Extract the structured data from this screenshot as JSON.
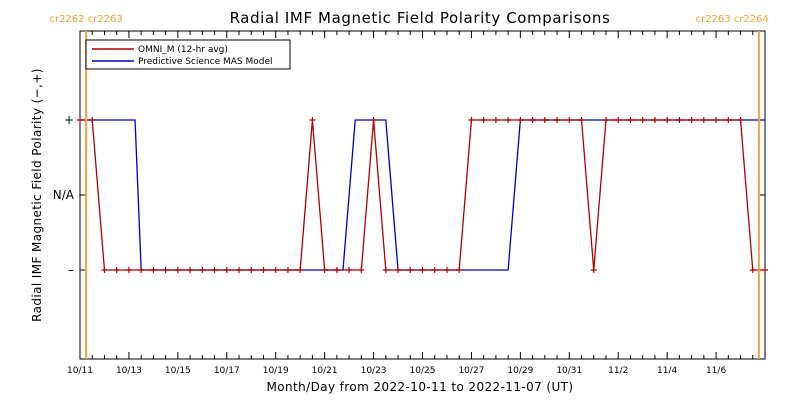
{
  "chart_data": {
    "type": "line",
    "title": "Radial IMF Magnetic Field Polarity Comparisons",
    "xlabel": "Month/Day from 2022-10-11 to 2022-11-07 (UT)",
    "ylabel": "Radial IMF Magnetic Field Polarity (−,+)",
    "x_tick_labels": [
      "10/11",
      "10/13",
      "10/15",
      "10/17",
      "10/19",
      "10/21",
      "10/23",
      "10/25",
      "10/27",
      "10/29",
      "10/31",
      "11/2",
      "11/4",
      "11/6"
    ],
    "y_tick_labels": [
      "+",
      "N/A",
      "–"
    ],
    "y_levels": [
      "+",
      "N/A",
      "–"
    ],
    "carrington_markers": [
      {
        "date": "2022-10-11T06:00",
        "labels": [
          "cr2262",
          "cr2263"
        ],
        "color": "#f7a03c"
      },
      {
        "date": "2022-11-07T18:00",
        "labels": [
          "cr2263",
          "cr2264"
        ],
        "color": "#f7a03c"
      }
    ],
    "legend": {
      "placement": "top-left"
    },
    "series": [
      {
        "name": "OMNI_M (12-hr avg)",
        "color": "#b00000",
        "markers": true,
        "points": [
          [
            "2022-10-11T00:00",
            "+"
          ],
          [
            "2022-10-11T12:00",
            "+"
          ],
          [
            "2022-10-12T00:00",
            "–"
          ],
          [
            "2022-10-12T12:00",
            "–"
          ],
          [
            "2022-10-13T00:00",
            "–"
          ],
          [
            "2022-10-13T12:00",
            "–"
          ],
          [
            "2022-10-14T00:00",
            "–"
          ],
          [
            "2022-10-14T12:00",
            "–"
          ],
          [
            "2022-10-15T00:00",
            "–"
          ],
          [
            "2022-10-15T12:00",
            "–"
          ],
          [
            "2022-10-16T00:00",
            "–"
          ],
          [
            "2022-10-16T12:00",
            "–"
          ],
          [
            "2022-10-17T00:00",
            "–"
          ],
          [
            "2022-10-17T12:00",
            "–"
          ],
          [
            "2022-10-18T00:00",
            "–"
          ],
          [
            "2022-10-18T12:00",
            "–"
          ],
          [
            "2022-10-19T00:00",
            "–"
          ],
          [
            "2022-10-19T12:00",
            "–"
          ],
          [
            "2022-10-20T00:00",
            "–"
          ],
          [
            "2022-10-20T12:00",
            "+"
          ],
          [
            "2022-10-21T00:00",
            "–"
          ],
          [
            "2022-10-21T12:00",
            "–"
          ],
          [
            "2022-10-22T00:00",
            "–"
          ],
          [
            "2022-10-22T12:00",
            "–"
          ],
          [
            "2022-10-23T00:00",
            "+"
          ],
          [
            "2022-10-23T12:00",
            "–"
          ],
          [
            "2022-10-24T00:00",
            "–"
          ],
          [
            "2022-10-24T12:00",
            "–"
          ],
          [
            "2022-10-25T00:00",
            "–"
          ],
          [
            "2022-10-25T12:00",
            "–"
          ],
          [
            "2022-10-26T00:00",
            "–"
          ],
          [
            "2022-10-26T12:00",
            "–"
          ],
          [
            "2022-10-27T00:00",
            "+"
          ],
          [
            "2022-10-27T12:00",
            "+"
          ],
          [
            "2022-10-28T00:00",
            "+"
          ],
          [
            "2022-10-28T12:00",
            "+"
          ],
          [
            "2022-10-29T00:00",
            "+"
          ],
          [
            "2022-10-29T12:00",
            "+"
          ],
          [
            "2022-10-30T00:00",
            "+"
          ],
          [
            "2022-10-30T12:00",
            "+"
          ],
          [
            "2022-10-31T00:00",
            "+"
          ],
          [
            "2022-10-31T12:00",
            "+"
          ],
          [
            "2022-11-01T00:00",
            "–"
          ],
          [
            "2022-11-01T12:00",
            "+"
          ],
          [
            "2022-11-02T00:00",
            "+"
          ],
          [
            "2022-11-02T12:00",
            "+"
          ],
          [
            "2022-11-03T00:00",
            "+"
          ],
          [
            "2022-11-03T12:00",
            "+"
          ],
          [
            "2022-11-04T00:00",
            "+"
          ],
          [
            "2022-11-04T12:00",
            "+"
          ],
          [
            "2022-11-05T00:00",
            "+"
          ],
          [
            "2022-11-05T12:00",
            "+"
          ],
          [
            "2022-11-06T00:00",
            "+"
          ],
          [
            "2022-11-06T12:00",
            "+"
          ],
          [
            "2022-11-07T00:00",
            "+"
          ],
          [
            "2022-11-07T12:00",
            "–"
          ],
          [
            "2022-11-08T00:00",
            "–"
          ]
        ]
      },
      {
        "name": "Predictive Science MAS Model",
        "color": "#0000c8",
        "markers": false,
        "points": [
          [
            "2022-10-11T00:00",
            "+"
          ],
          [
            "2022-10-13T06:00",
            "+"
          ],
          [
            "2022-10-13T12:00",
            "–"
          ],
          [
            "2022-10-21T18:00",
            "–"
          ],
          [
            "2022-10-22T06:00",
            "+"
          ],
          [
            "2022-10-23T12:00",
            "+"
          ],
          [
            "2022-10-24T00:00",
            "–"
          ],
          [
            "2022-10-28T12:00",
            "–"
          ],
          [
            "2022-10-29T00:00",
            "+"
          ],
          [
            "2022-11-08T00:00",
            "+"
          ]
        ]
      }
    ]
  }
}
